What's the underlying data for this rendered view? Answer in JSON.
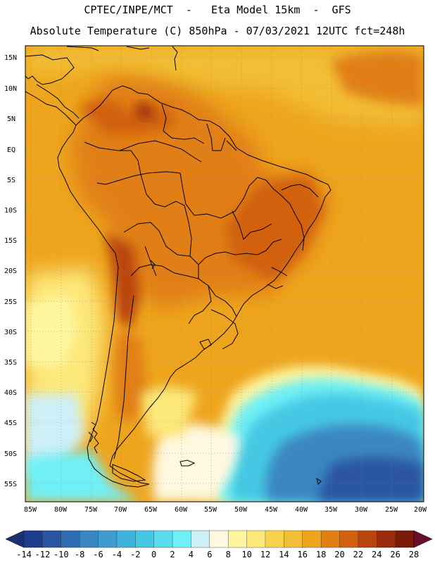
{
  "header": {
    "line1": "CPTEC/INPE/MCT  -   Eta Model 15km  -  GFS",
    "line2": "Absolute Temperature (C) 850hPa - 07/03/2021 12UTC fct=248h"
  },
  "map": {
    "lat_labels": [
      "15N",
      "10N",
      "5N",
      "EQ",
      "5S",
      "10S",
      "15S",
      "20S",
      "25S",
      "30S",
      "35S",
      "40S",
      "45S",
      "50S",
      "55S"
    ],
    "lon_labels": [
      "85W",
      "80W",
      "75W",
      "70W",
      "65W",
      "60W",
      "55W",
      "50W",
      "45W",
      "40W",
      "35W",
      "30W",
      "25W",
      "20W"
    ]
  },
  "colorbar": {
    "tick_labels": [
      "-14",
      "-12",
      "-10",
      "-8",
      "-6",
      "-4",
      "-2",
      "0",
      "2",
      "4",
      "6",
      "8",
      "10",
      "12",
      "14",
      "16",
      "18",
      "20",
      "22",
      "24",
      "26",
      "28"
    ],
    "colors": [
      "#1f3d8e",
      "#2a55a2",
      "#2f6db3",
      "#3a86c2",
      "#3e9ccf",
      "#3fb3d9",
      "#45c8e4",
      "#5adbee",
      "#6ff0f6",
      "#cdeff7",
      "#fff8e0",
      "#fff6a0",
      "#fde87a",
      "#f8d24d",
      "#f2be35",
      "#eea51d",
      "#e17f12",
      "#d2600e",
      "#b9440c",
      "#9a2b0a",
      "#7a1a08"
    ],
    "low_arrow_color": "#1b2f72",
    "high_arrow_color": "#6a0e2a"
  }
}
